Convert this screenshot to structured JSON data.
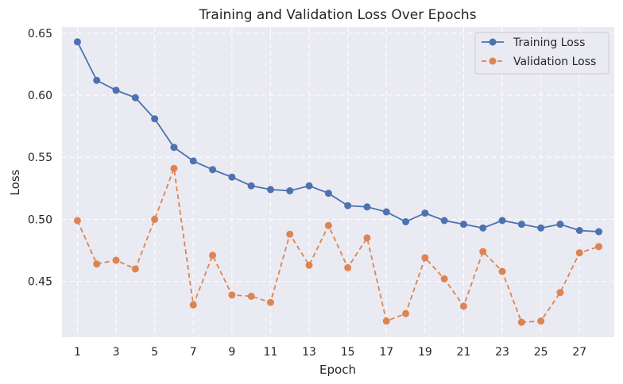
{
  "chart_data": {
    "type": "line",
    "title": "Training and Validation Loss Over Epochs",
    "xlabel": "Epoch",
    "ylabel": "Loss",
    "xlim": [
      0.2,
      28.8
    ],
    "ylim": [
      0.405,
      0.655
    ],
    "x": [
      1,
      2,
      3,
      4,
      5,
      6,
      7,
      8,
      9,
      10,
      11,
      12,
      13,
      14,
      15,
      16,
      17,
      18,
      19,
      20,
      21,
      22,
      23,
      24,
      25,
      26,
      27,
      28
    ],
    "xticks": [
      1,
      3,
      5,
      7,
      9,
      11,
      13,
      15,
      17,
      19,
      21,
      23,
      25,
      27
    ],
    "xtick_labels": [
      "1",
      "3",
      "5",
      "7",
      "9",
      "11",
      "13",
      "15",
      "17",
      "19",
      "21",
      "23",
      "25",
      "27"
    ],
    "yticks": [
      0.45,
      0.5,
      0.55,
      0.6,
      0.65
    ],
    "ytick_labels": [
      "0.45",
      "0.50",
      "0.55",
      "0.60",
      "0.65"
    ],
    "grid": true,
    "legend_position": "top-right",
    "series": [
      {
        "name": "Training Loss",
        "color": "#4c72b0",
        "line_style": "solid",
        "marker": "circle",
        "values": [
          0.643,
          0.612,
          0.604,
          0.598,
          0.581,
          0.558,
          0.547,
          0.54,
          0.534,
          0.527,
          0.524,
          0.523,
          0.527,
          0.521,
          0.511,
          0.51,
          0.506,
          0.498,
          0.505,
          0.499,
          0.496,
          0.493,
          0.499,
          0.496,
          0.493,
          0.496,
          0.491,
          0.49
        ]
      },
      {
        "name": "Validation Loss",
        "color": "#dd8452",
        "line_style": "dashed",
        "marker": "circle",
        "values": [
          0.499,
          0.464,
          0.467,
          0.46,
          0.5,
          0.541,
          0.431,
          0.471,
          0.439,
          0.438,
          0.433,
          0.488,
          0.463,
          0.495,
          0.461,
          0.485,
          0.418,
          0.424,
          0.469,
          0.452,
          0.43,
          0.474,
          0.458,
          0.417,
          0.418,
          0.441,
          0.473,
          0.478
        ]
      }
    ]
  }
}
